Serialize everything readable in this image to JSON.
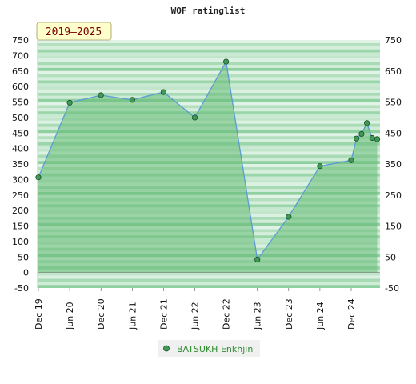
{
  "colors": {
    "line": "#5b9bd5",
    "area": "#66bb77",
    "marker_fill": "#3f9a55",
    "marker_stroke": "#1b4d24",
    "band_dark": "#8fd0a0",
    "band_light": "#c9ead2",
    "legend_text": "#2e8b2e",
    "period_bg": "#ffffcc",
    "period_border": "#999966"
  },
  "chart_data": {
    "type": "area",
    "title": "WOF ratinglist",
    "period_label": "2019–2025",
    "ylim": [
      -50,
      750
    ],
    "y_ticks_left": [
      -50,
      0,
      50,
      100,
      150,
      200,
      250,
      300,
      350,
      400,
      450,
      500,
      550,
      600,
      650,
      700,
      750
    ],
    "y_ticks_right": [
      -50,
      50,
      150,
      250,
      350,
      450,
      550,
      650,
      750
    ],
    "x_ticks": [
      "Dec 19",
      "Jun 20",
      "Dec 20",
      "Jun 21",
      "Dec 21",
      "Jun 22",
      "Dec 22",
      "Jun 23",
      "Dec 23",
      "Jun 24",
      "Dec 24"
    ],
    "grid": false,
    "legend_position": "bottom-center",
    "series": [
      {
        "name": "BATSUKH Enkhjin",
        "points": [
          {
            "x": 0.0,
            "y": 307
          },
          {
            "x": 1.0,
            "y": 548
          },
          {
            "x": 2.0,
            "y": 572
          },
          {
            "x": 3.0,
            "y": 557
          },
          {
            "x": 4.0,
            "y": 582
          },
          {
            "x": 5.0,
            "y": 500
          },
          {
            "x": 6.0,
            "y": 680
          },
          {
            "x": 7.0,
            "y": 42
          },
          {
            "x": 8.0,
            "y": 180
          },
          {
            "x": 9.0,
            "y": 343
          },
          {
            "x": 10.0,
            "y": 362
          },
          {
            "x": 10.17,
            "y": 432
          },
          {
            "x": 10.33,
            "y": 447
          },
          {
            "x": 10.5,
            "y": 482
          },
          {
            "x": 10.67,
            "y": 434
          },
          {
            "x": 10.83,
            "y": 430
          }
        ]
      }
    ]
  }
}
